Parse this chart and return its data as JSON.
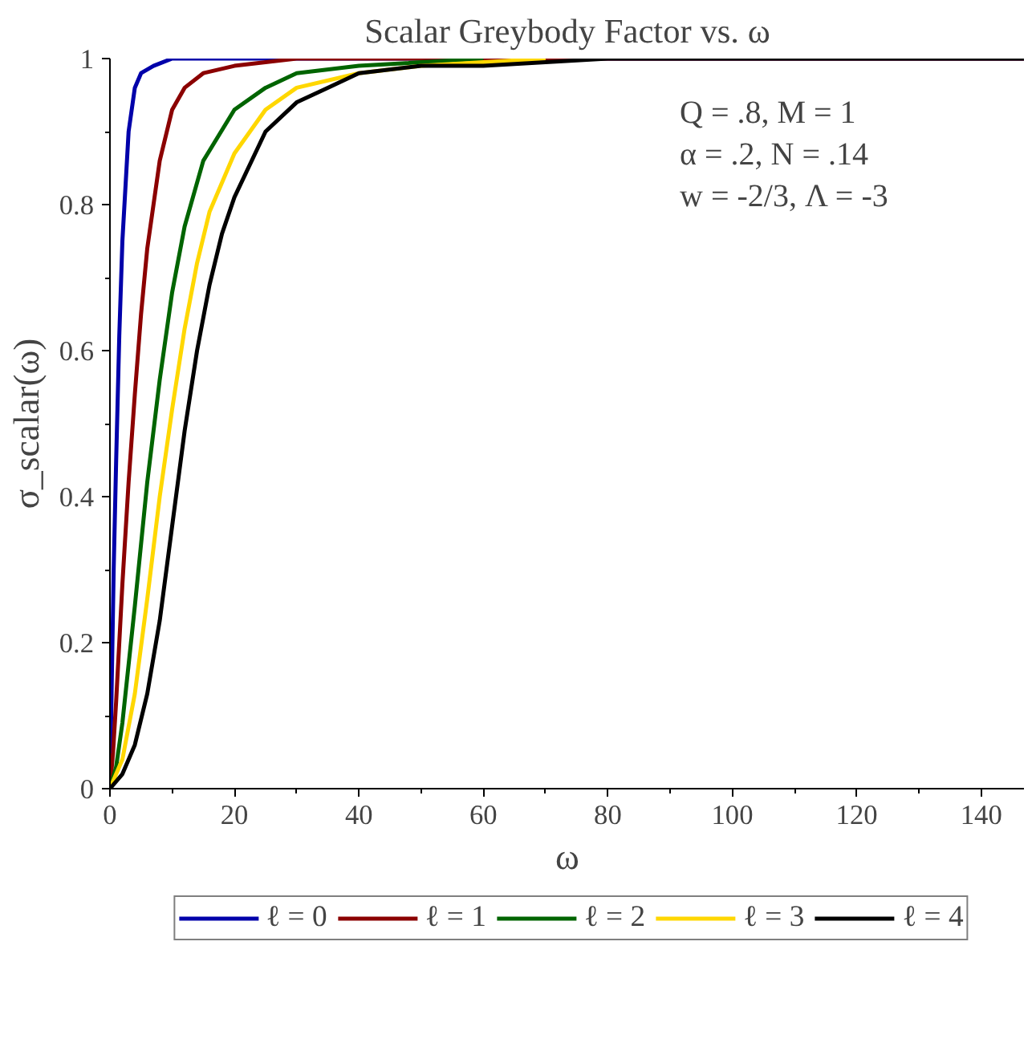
{
  "chart_data": {
    "type": "line",
    "title": "Scalar Greybody Factor vs. ω",
    "xlabel": "ω",
    "ylabel": "σ_scalar(ω)",
    "annotations": [
      "Q = .8, M = 1",
      "α = .2, N = .14",
      "w = -2/3, Λ = -3"
    ],
    "xlim": [
      0,
      147
    ],
    "ylim": [
      0,
      1
    ],
    "xticks": [
      0,
      20,
      40,
      60,
      80,
      100,
      120,
      140
    ],
    "yticks": [
      0,
      0.2,
      0.4,
      0.6,
      0.8,
      1
    ],
    "grid": false,
    "legend": "bottom",
    "marker": "none",
    "line_style": "solid",
    "series": [
      {
        "name": "ℓ = 0",
        "color": "#0000aa",
        "x": [
          0,
          0.3,
          0.6,
          1,
          1.5,
          2,
          3,
          4,
          5,
          7,
          10,
          147
        ],
        "values": [
          0,
          0.15,
          0.3,
          0.45,
          0.62,
          0.75,
          0.9,
          0.96,
          0.98,
          0.99,
          1,
          1
        ]
      },
      {
        "name": "ℓ = 1",
        "color": "#8b0000",
        "x": [
          0,
          0.5,
          1,
          2,
          3,
          4,
          5,
          6,
          8,
          10,
          12,
          15,
          20,
          30,
          147
        ],
        "values": [
          0,
          0.05,
          0.12,
          0.28,
          0.42,
          0.54,
          0.65,
          0.74,
          0.86,
          0.93,
          0.96,
          0.98,
          0.99,
          1,
          1
        ]
      },
      {
        "name": "ℓ = 2",
        "color": "#006400",
        "x": [
          0,
          1,
          2,
          4,
          6,
          8,
          10,
          12,
          15,
          20,
          25,
          30,
          40,
          60
        ],
        "values": [
          0,
          0.03,
          0.09,
          0.25,
          0.42,
          0.56,
          0.68,
          0.77,
          0.86,
          0.93,
          0.96,
          0.98,
          0.99,
          1
        ]
      },
      {
        "name": "ℓ = 3",
        "color": "#ffd700",
        "x": [
          0,
          2,
          4,
          6,
          8,
          10,
          12,
          14,
          16,
          20,
          25,
          30,
          40,
          50,
          70
        ],
        "values": [
          0,
          0.04,
          0.13,
          0.26,
          0.4,
          0.52,
          0.63,
          0.72,
          0.79,
          0.87,
          0.93,
          0.96,
          0.98,
          0.99,
          1
        ]
      },
      {
        "name": "ℓ = 4",
        "color": "#000000",
        "x": [
          0,
          2,
          4,
          6,
          8,
          10,
          12,
          14,
          16,
          18,
          20,
          25,
          30,
          35,
          40,
          50,
          60,
          80,
          100,
          147
        ],
        "values": [
          0,
          0.02,
          0.06,
          0.13,
          0.23,
          0.36,
          0.49,
          0.6,
          0.69,
          0.76,
          0.81,
          0.9,
          0.94,
          0.96,
          0.98,
          0.99,
          0.99,
          1,
          1,
          1
        ]
      }
    ]
  }
}
